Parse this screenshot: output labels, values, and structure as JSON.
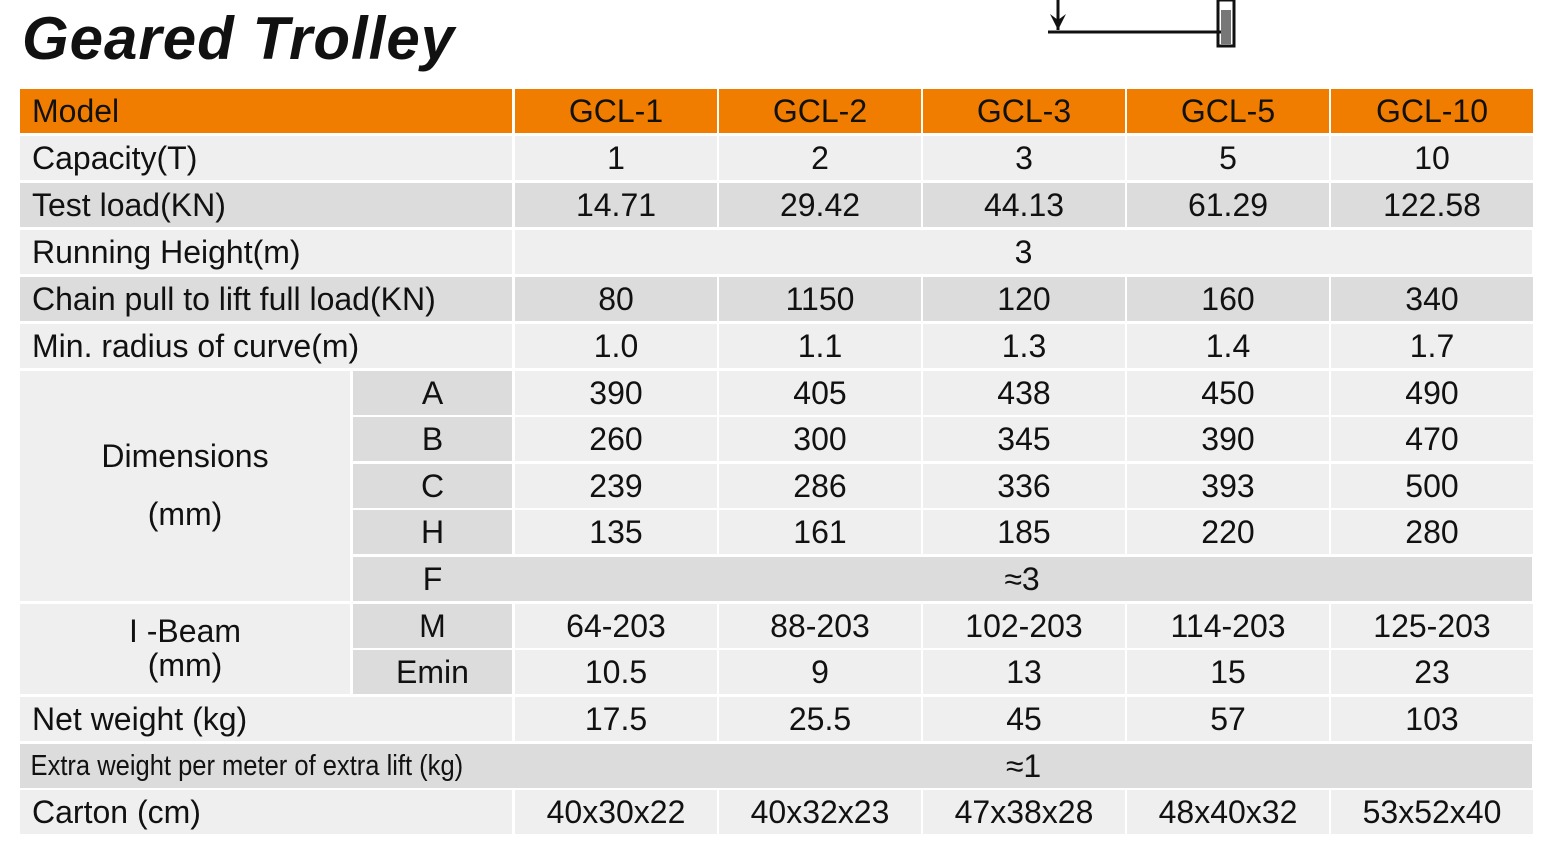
{
  "title": "Geared Trolley",
  "header": {
    "model_label": "Model",
    "models": [
      "GCL-1",
      "GCL-2",
      "GCL-3",
      "GCL-5",
      "GCL-10"
    ]
  },
  "rows": {
    "capacity": {
      "label": "Capacity(T)",
      "values": [
        "1",
        "2",
        "3",
        "5",
        "10"
      ]
    },
    "test_load": {
      "label": "Test load(KN)",
      "values": [
        "14.71",
        "29.42",
        "44.13",
        "61.29",
        "122.58"
      ]
    },
    "running_height": {
      "label": "Running Height(m)",
      "value": "3"
    },
    "chain_pull": {
      "label": "Chain pull to lift full load(KN)",
      "values": [
        "80",
        "1150",
        "120",
        "160",
        "340"
      ]
    },
    "min_radius": {
      "label": "Min. radius of curve(m)",
      "values": [
        "1.0",
        "1.1",
        "1.3",
        "1.4",
        "1.7"
      ]
    },
    "dimensions": {
      "label_line1": "Dimensions",
      "label_line2": "(mm)",
      "A": {
        "label": "A",
        "values": [
          "390",
          "405",
          "438",
          "450",
          "490"
        ]
      },
      "B": {
        "label": "B",
        "values": [
          "260",
          "300",
          "345",
          "390",
          "470"
        ]
      },
      "C": {
        "label": "C",
        "values": [
          "239",
          "286",
          "336",
          "393",
          "500"
        ]
      },
      "H": {
        "label": "H",
        "values": [
          "135",
          "161",
          "185",
          "220",
          "280"
        ]
      },
      "F": {
        "label": "F",
        "value": "≈3"
      }
    },
    "ibeam": {
      "label_line1": "I -Beam",
      "label_line2": "(mm)",
      "M": {
        "label": "M",
        "values": [
          "64-203",
          "88-203",
          "102-203",
          "114-203",
          "125-203"
        ]
      },
      "Emin": {
        "label": "Emin",
        "values": [
          "10.5",
          "9",
          "13",
          "15",
          "23"
        ]
      }
    },
    "net_weight": {
      "label": "Net weight (kg)",
      "values": [
        "17.5",
        "25.5",
        "45",
        "57",
        "103"
      ]
    },
    "extra_weight": {
      "label": "Extra weight per meter of extra lift (kg)",
      "value": "≈1"
    },
    "carton": {
      "label": "Carton (cm)",
      "values": [
        "40x30x22",
        "40x32x23",
        "47x38x28",
        "48x40x32",
        "53x52x40"
      ]
    }
  },
  "colors": {
    "header": "#f07d00",
    "row_light": "#efefef",
    "row_dark": "#dcdcdc"
  }
}
